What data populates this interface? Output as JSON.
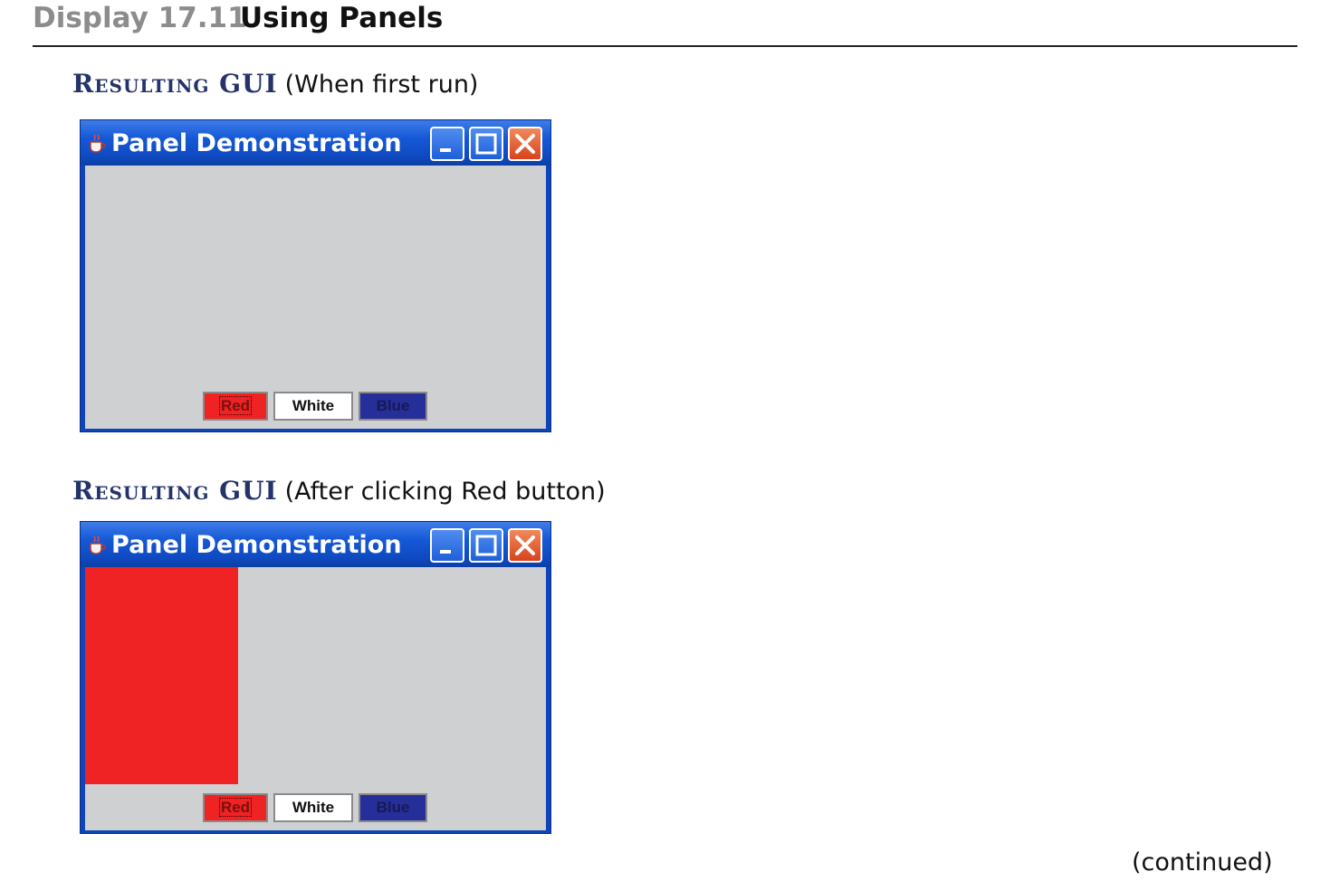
{
  "header": {
    "display_label": "Display 17.11",
    "title": "Using Panels"
  },
  "sections": [
    {
      "heading": "Resulting GUI",
      "note": "(When first run)",
      "window": {
        "title": "Panel Demonstration",
        "red_panel_visible": false,
        "buttons": {
          "red": "Red",
          "white": "White",
          "blue": "Blue"
        }
      }
    },
    {
      "heading": "Resulting GUI",
      "note": "(After clicking Red button)",
      "window": {
        "title": "Panel Demonstration",
        "red_panel_visible": true,
        "buttons": {
          "red": "Red",
          "white": "White",
          "blue": "Blue"
        }
      }
    }
  ],
  "footer": {
    "continued": "(continued)"
  },
  "colors": {
    "panel_gray": "#cfd0d2",
    "red": "#ef2224",
    "blue": "#262e9a",
    "window_frame": "#0f45b8",
    "heading_blue": "#24336b"
  },
  "icons": [
    "java-cup-icon",
    "minimize-icon",
    "maximize-icon",
    "close-icon"
  ]
}
